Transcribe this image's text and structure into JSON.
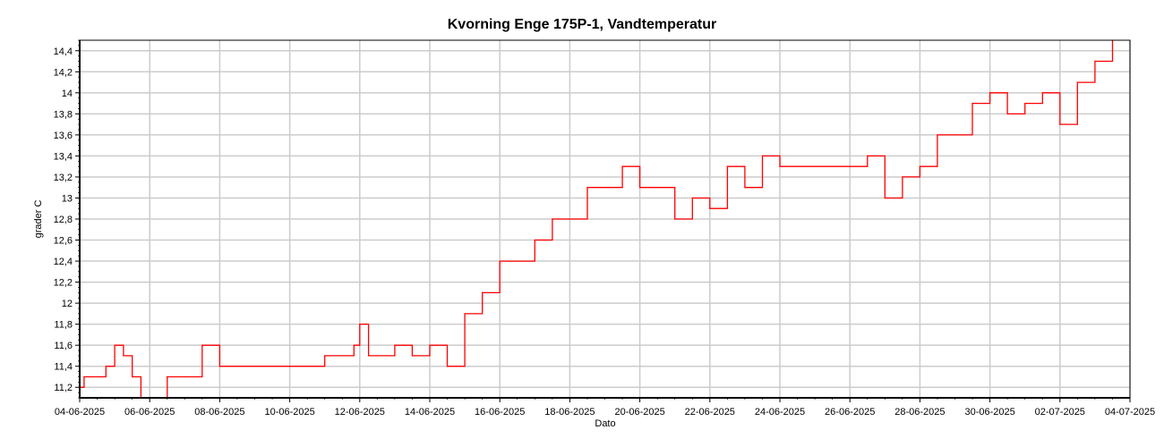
{
  "chart_data": {
    "type": "line",
    "title": "Kvorning Enge 175P-1, Vandtemperatur",
    "xlabel": "Dato",
    "ylabel": "grader C",
    "xlim": [
      "2025-06-04",
      "2025-07-04"
    ],
    "ylim": [
      11.1,
      14.5
    ],
    "x_ticks": [
      "04-06-2025",
      "06-06-2025",
      "08-06-2025",
      "10-06-2025",
      "12-06-2025",
      "14-06-2025",
      "16-06-2025",
      "18-06-2025",
      "20-06-2025",
      "22-06-2025",
      "24-06-2025",
      "26-06-2025",
      "28-06-2025",
      "30-06-2025",
      "02-07-2025",
      "04-07-2025"
    ],
    "y_ticks": [
      "11,2",
      "11,4",
      "11,6",
      "11,8",
      "12",
      "12,2",
      "12,4",
      "12,6",
      "12,8",
      "13",
      "13,2",
      "13,4",
      "13,6",
      "13,8",
      "14",
      "14,2",
      "14,4"
    ],
    "grid": true,
    "legend": "none",
    "series": [
      {
        "color": "#ff0000",
        "x": [
          "2025-06-04 00:00",
          "2025-06-04 03:00",
          "2025-06-04 12:00",
          "2025-06-04 18:00",
          "2025-06-05 00:00",
          "2025-06-05 06:00",
          "2025-06-05 12:00",
          "2025-06-05 18:00",
          "2025-06-06 00:00",
          "2025-06-06 12:00",
          "2025-06-07 00:00",
          "2025-06-07 12:00",
          "2025-06-08 00:00",
          "2025-06-09 00:00",
          "2025-06-10 00:00",
          "2025-06-11 00:00",
          "2025-06-11 12:00",
          "2025-06-11 20:00",
          "2025-06-12 00:00",
          "2025-06-12 06:00",
          "2025-06-12 12:00",
          "2025-06-13 00:00",
          "2025-06-13 12:00",
          "2025-06-14 00:00",
          "2025-06-14 12:00",
          "2025-06-15 00:00",
          "2025-06-15 12:00",
          "2025-06-16 00:00",
          "2025-06-16 12:00",
          "2025-06-17 00:00",
          "2025-06-17 12:00",
          "2025-06-18 00:00",
          "2025-06-18 12:00",
          "2025-06-19 00:00",
          "2025-06-19 12:00",
          "2025-06-20 00:00",
          "2025-06-20 12:00",
          "2025-06-21 00:00",
          "2025-06-21 12:00",
          "2025-06-22 00:00",
          "2025-06-22 12:00",
          "2025-06-23 00:00",
          "2025-06-23 12:00",
          "2025-06-24 00:00",
          "2025-06-25 00:00",
          "2025-06-26 00:00",
          "2025-06-26 12:00",
          "2025-06-27 00:00",
          "2025-06-27 12:00",
          "2025-06-28 00:00",
          "2025-06-28 12:00",
          "2025-06-29 00:00",
          "2025-06-29 12:00",
          "2025-06-30 00:00",
          "2025-06-30 12:00",
          "2025-07-01 00:00",
          "2025-07-01 12:00",
          "2025-07-02 00:00",
          "2025-07-02 12:00",
          "2025-07-02 18:00",
          "2025-07-03 00:00",
          "2025-07-03 12:00"
        ],
        "y": [
          11.2,
          11.3,
          11.3,
          11.4,
          11.6,
          11.5,
          11.3,
          11.1,
          11.1,
          11.3,
          11.3,
          11.6,
          11.4,
          11.4,
          11.4,
          11.5,
          11.5,
          11.6,
          11.8,
          11.5,
          11.5,
          11.6,
          11.5,
          11.6,
          11.4,
          11.9,
          12.1,
          12.4,
          12.4,
          12.6,
          12.8,
          12.8,
          13.1,
          13.1,
          13.3,
          13.1,
          13.1,
          12.8,
          13.0,
          12.9,
          13.3,
          13.1,
          13.4,
          13.3,
          13.3,
          13.3,
          13.4,
          13.0,
          13.2,
          13.3,
          13.6,
          13.6,
          13.9,
          14.0,
          13.8,
          13.9,
          14.0,
          13.7,
          14.1,
          14.1,
          14.3,
          14.5
        ]
      }
    ]
  }
}
